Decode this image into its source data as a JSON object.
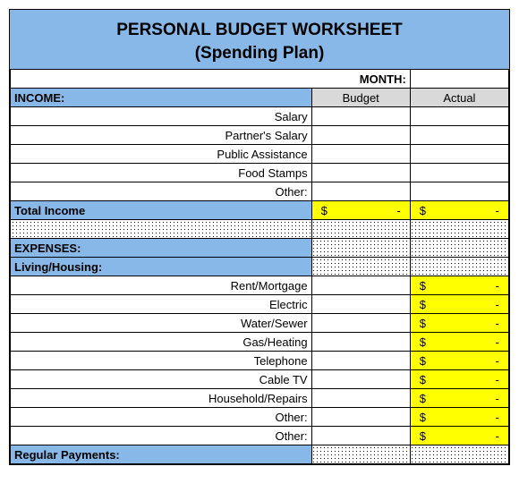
{
  "title": "PERSONAL BUDGET WORKSHEET",
  "subtitle": "(Spending Plan)",
  "month_label": "MONTH:",
  "month_value": "",
  "columns": {
    "label": "",
    "budget": "Budget",
    "actual": "Actual"
  },
  "income": {
    "header": "INCOME:",
    "items": [
      {
        "label": "Salary",
        "budget": "",
        "actual": ""
      },
      {
        "label": "Partner's Salary",
        "budget": "",
        "actual": ""
      },
      {
        "label": "Public Assistance",
        "budget": "",
        "actual": ""
      },
      {
        "label": "Food Stamps",
        "budget": "",
        "actual": ""
      },
      {
        "label": "Other:",
        "budget": "",
        "actual": ""
      }
    ],
    "total_label": "Total Income",
    "total_budget_sym": "$",
    "total_budget_val": "-",
    "total_actual_sym": "$",
    "total_actual_val": "-"
  },
  "expenses_header": "EXPENSES:",
  "living": {
    "header": "Living/Housing:",
    "items": [
      {
        "label": "Rent/Mortgage",
        "sym": "$",
        "val": "-"
      },
      {
        "label": "Electric",
        "sym": "$",
        "val": "-"
      },
      {
        "label": "Water/Sewer",
        "sym": "$",
        "val": "-"
      },
      {
        "label": "Gas/Heating",
        "sym": "$",
        "val": "-"
      },
      {
        "label": "Telephone",
        "sym": "$",
        "val": "-"
      },
      {
        "label": "Cable TV",
        "sym": "$",
        "val": "-"
      },
      {
        "label": "Household/Repairs",
        "sym": "$",
        "val": "-"
      },
      {
        "label": "Other:",
        "sym": "$",
        "val": "-"
      },
      {
        "label": "Other:",
        "sym": "$",
        "val": "-"
      }
    ]
  },
  "regular_payments_header": "Regular Payments:",
  "colors": {
    "header_blue": "#88b8e8",
    "header_gray": "#d9d9d9",
    "highlight_yellow": "#ffff00",
    "border": "#000000",
    "background": "#ffffff"
  }
}
